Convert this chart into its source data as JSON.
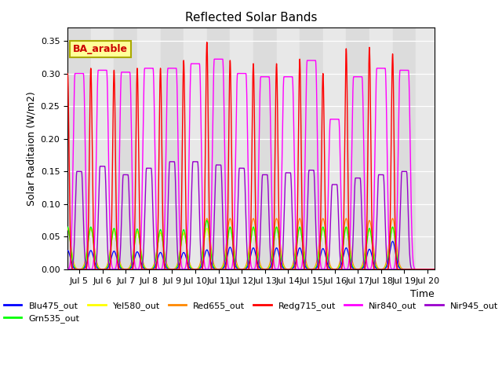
{
  "title": "Reflected Solar Bands",
  "xlabel": "Time",
  "ylabel": "Solar Raditaion (W/m2)",
  "ylim": [
    0,
    0.37
  ],
  "xlim_days": [
    4.5,
    20.3
  ],
  "annotation_text": "BA_arable",
  "annotation_color": "#CC0000",
  "annotation_bg": "#FFFF99",
  "annotation_edge": "#AAAA00",
  "series": [
    {
      "name": "Blu475_out",
      "color": "#0000FF"
    },
    {
      "name": "Grn535_out",
      "color": "#00FF00"
    },
    {
      "name": "Yel580_out",
      "color": "#FFFF00"
    },
    {
      "name": "Red655_out",
      "color": "#FF8800"
    },
    {
      "name": "Redg715_out",
      "color": "#FF0000"
    },
    {
      "name": "Nir840_out",
      "color": "#FF00FF"
    },
    {
      "name": "Nir945_out",
      "color": "#9900CC"
    }
  ],
  "peak_heights": {
    "blu": [
      0.029,
      0.029,
      0.028,
      0.027,
      0.026,
      0.026,
      0.03,
      0.034,
      0.033,
      0.033,
      0.033,
      0.032,
      0.033,
      0.031,
      0.043,
      0.0
    ],
    "grn": [
      0.065,
      0.065,
      0.063,
      0.062,
      0.061,
      0.061,
      0.075,
      0.065,
      0.065,
      0.065,
      0.065,
      0.065,
      0.065,
      0.063,
      0.065,
      0.0
    ],
    "yel": [
      0.063,
      0.063,
      0.06,
      0.058,
      0.057,
      0.057,
      0.063,
      0.063,
      0.063,
      0.063,
      0.063,
      0.062,
      0.063,
      0.06,
      0.063,
      0.0
    ],
    "red": [
      0.062,
      0.062,
      0.06,
      0.058,
      0.056,
      0.055,
      0.078,
      0.078,
      0.078,
      0.078,
      0.078,
      0.078,
      0.078,
      0.075,
      0.078,
      0.0
    ],
    "redg": [
      0.3,
      0.308,
      0.305,
      0.308,
      0.308,
      0.32,
      0.348,
      0.32,
      0.315,
      0.315,
      0.322,
      0.3,
      0.338,
      0.34,
      0.33,
      0.0
    ],
    "nir840": [
      0.3,
      0.305,
      0.302,
      0.308,
      0.308,
      0.315,
      0.322,
      0.3,
      0.295,
      0.295,
      0.32,
      0.23,
      0.295,
      0.308,
      0.305,
      0.0
    ],
    "nir945": [
      0.15,
      0.158,
      0.145,
      0.155,
      0.165,
      0.165,
      0.16,
      0.155,
      0.145,
      0.148,
      0.152,
      0.13,
      0.14,
      0.145,
      0.15,
      0.0
    ]
  },
  "tick_days": [
    5,
    6,
    7,
    8,
    9,
    10,
    11,
    12,
    13,
    14,
    15,
    16,
    17,
    18,
    19,
    20
  ],
  "background_color": "#FFFFFF",
  "plot_bg": "#E8E8E8"
}
